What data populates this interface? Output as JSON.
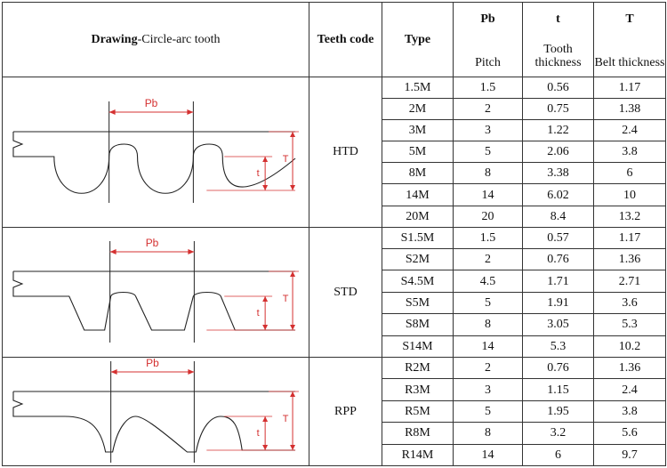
{
  "header": {
    "drawing_bold": "Drawing",
    "drawing_rest": "-Circle-arc tooth",
    "teeth_code": "Teeth code",
    "type": "Type",
    "pb_top": "Pb",
    "pb_bottom": "Pitch",
    "t_top": "t",
    "t_bottom": "Tooth thickness",
    "T_top": "T",
    "T_bottom": "Belt thickness"
  },
  "drawing_labels": {
    "pitch": "Pb",
    "tooth": "t",
    "belt": "T"
  },
  "groups": [
    {
      "code": "HTD",
      "profile": "circular",
      "rows": [
        {
          "type": "1.5M",
          "pb": "1.5",
          "t": "0.56",
          "T": "1.17"
        },
        {
          "type": "2M",
          "pb": "2",
          "t": "0.75",
          "T": "1.38"
        },
        {
          "type": "3M",
          "pb": "3",
          "t": "1.22",
          "T": "2.4"
        },
        {
          "type": "5M",
          "pb": "5",
          "t": "2.06",
          "T": "3.8"
        },
        {
          "type": "8M",
          "pb": "8",
          "t": "3.38",
          "T": "6"
        },
        {
          "type": "14M",
          "pb": "14",
          "t": "6.02",
          "T": "10"
        },
        {
          "type": "20M",
          "pb": "20",
          "t": "8.4",
          "T": "13.2"
        }
      ]
    },
    {
      "code": "STD",
      "profile": "trapezoidal-arc",
      "rows": [
        {
          "type": "S1.5M",
          "pb": "1.5",
          "t": "0.57",
          "T": "1.17"
        },
        {
          "type": "S2M",
          "pb": "2",
          "t": "0.76",
          "T": "1.36"
        },
        {
          "type": "S4.5M",
          "pb": "4.5",
          "t": "1.71",
          "T": "2.71"
        },
        {
          "type": "S5M",
          "pb": "5",
          "t": "1.91",
          "T": "3.6"
        },
        {
          "type": "S8M",
          "pb": "8",
          "t": "3.05",
          "T": "5.3"
        },
        {
          "type": "S14M",
          "pb": "14",
          "t": "5.3",
          "T": "10.2"
        }
      ]
    },
    {
      "code": "RPP",
      "profile": "parabolic",
      "rows": [
        {
          "type": "R2M",
          "pb": "2",
          "t": "0.76",
          "T": "1.36"
        },
        {
          "type": "R3M",
          "pb": "3",
          "t": "1.15",
          "T": "2.4"
        },
        {
          "type": "R5M",
          "pb": "5",
          "t": "1.95",
          "T": "3.8"
        },
        {
          "type": "R8M",
          "pb": "8",
          "t": "3.2",
          "T": "5.6"
        },
        {
          "type": "R14M",
          "pb": "14",
          "t": "6",
          "T": "9.7"
        }
      ]
    }
  ],
  "colors": {
    "grid": "#333333",
    "profile_line": "#222222",
    "dimension": "#d43030"
  }
}
